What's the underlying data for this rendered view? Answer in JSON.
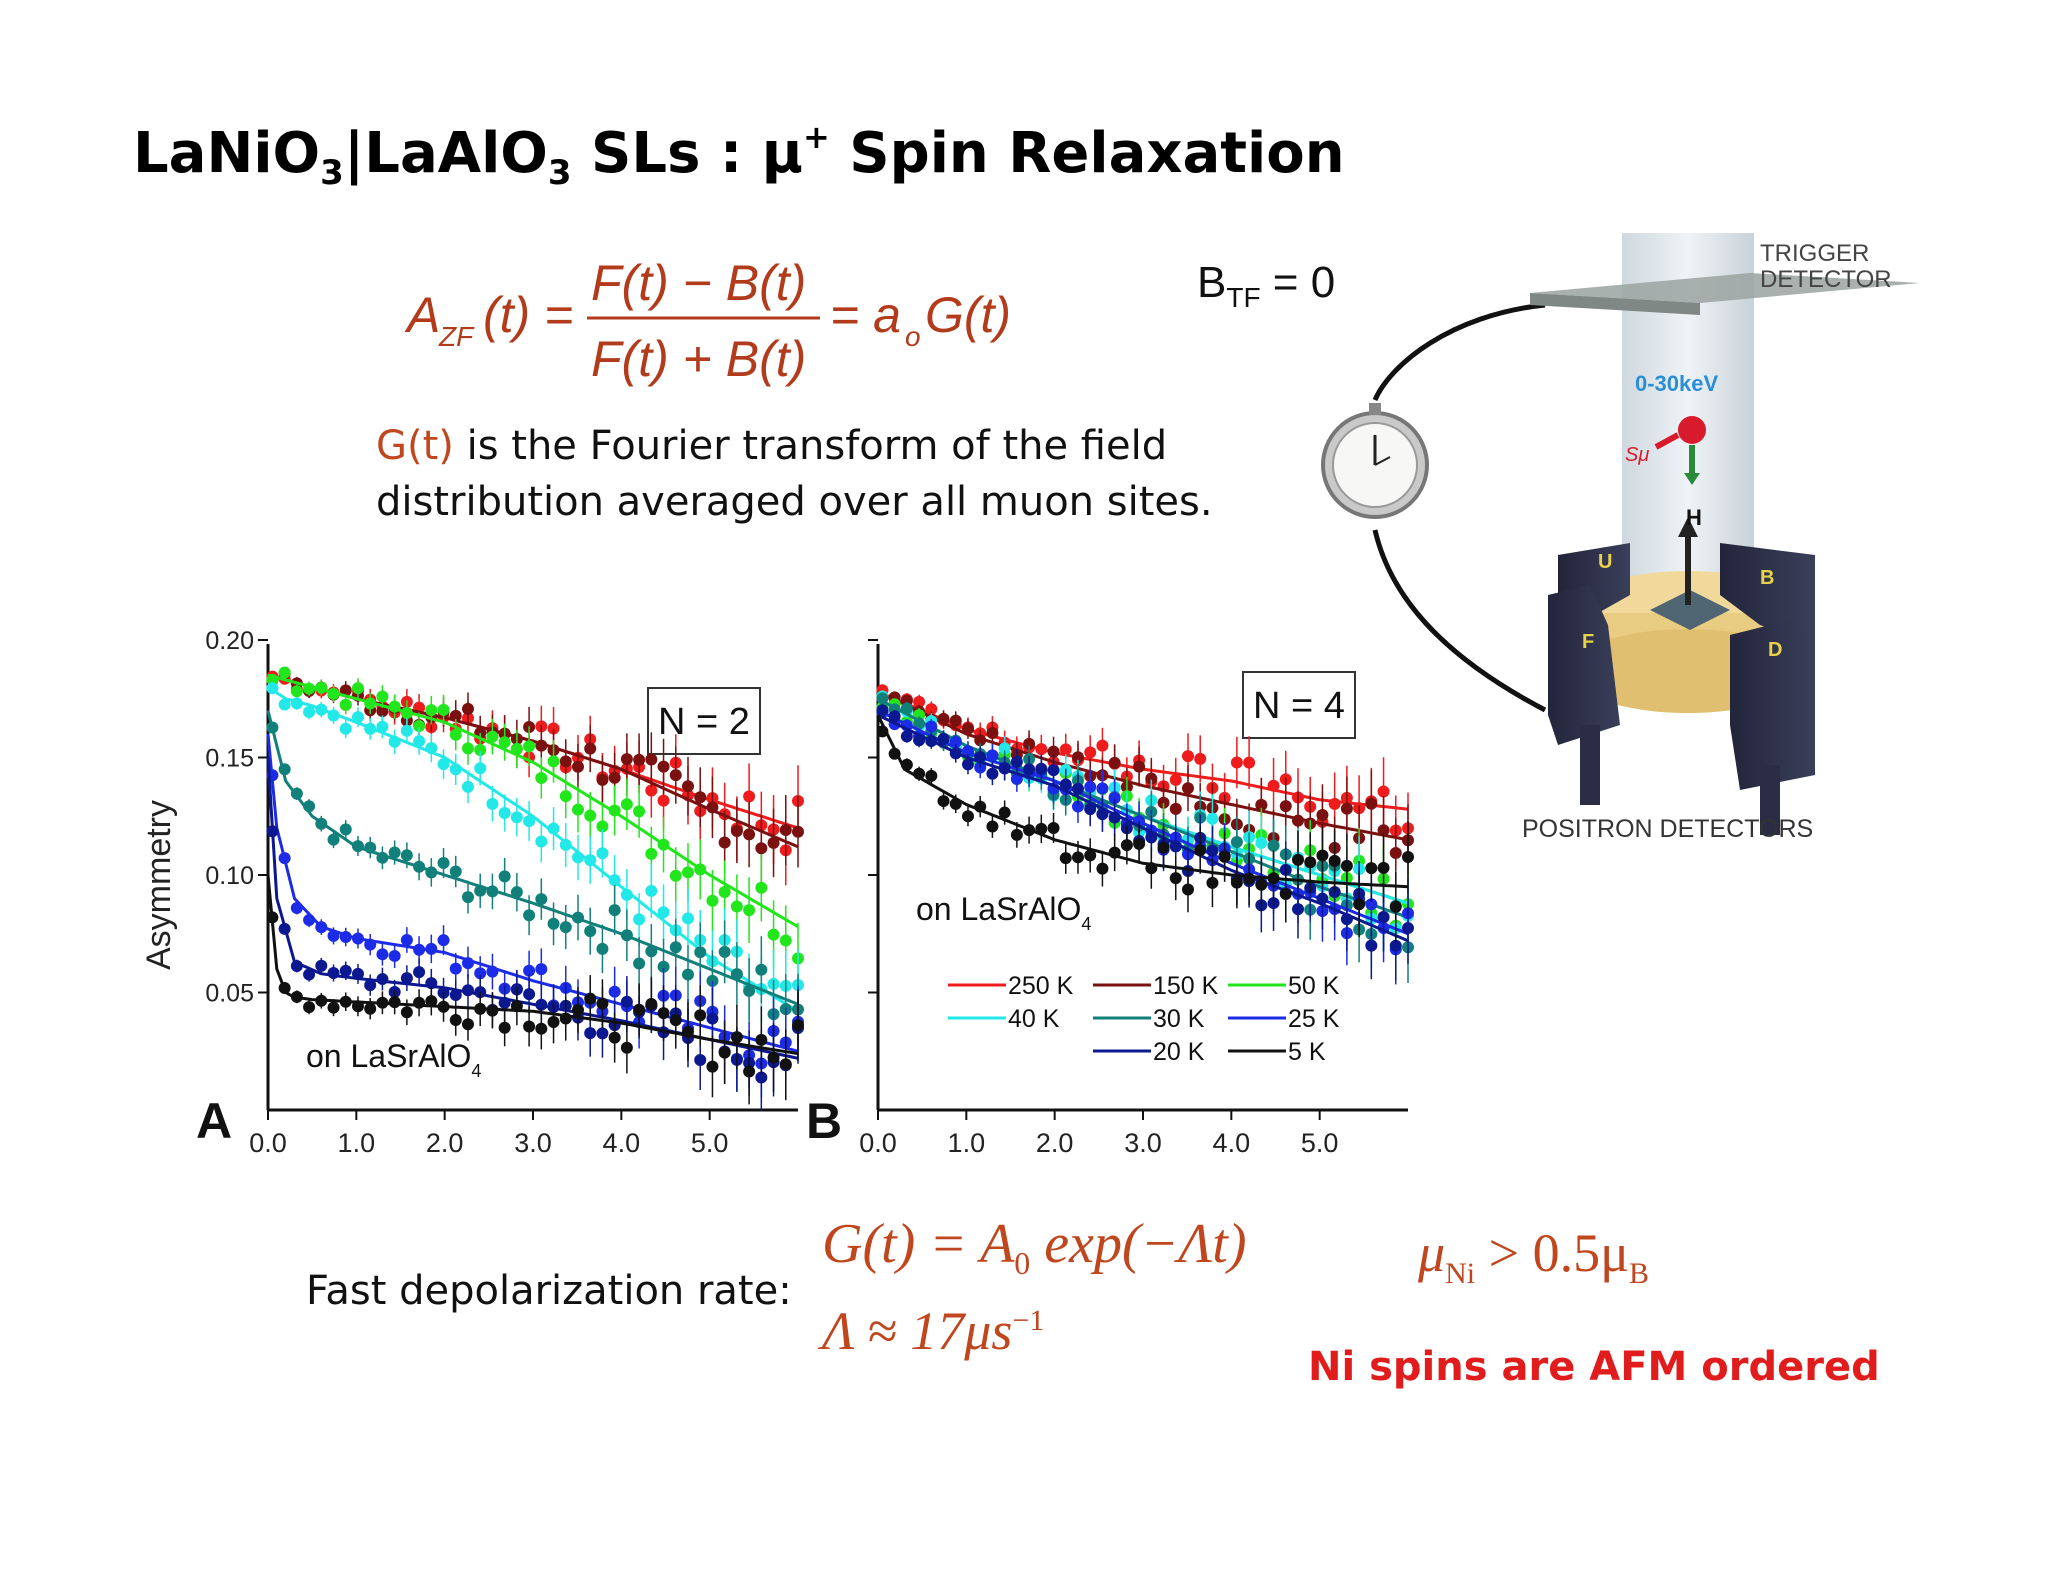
{
  "slide": {
    "title_parts": [
      "LaNiO",
      "3",
      "|LaAlO",
      "3",
      " SLs : μ",
      "+",
      " Spin Relaxation"
    ],
    "eq_a": "A",
    "eq_a_sub": "ZF",
    "eq_t": "(t) =",
    "eq_num": "F(t) − B(t)",
    "eq_den": "F(t) + B(t)",
    "eq_rhs": "= a",
    "eq_rhs_sub": "o",
    "eq_rhs2": "G(t)",
    "desc_hl": "G(t)",
    "desc_line1": " is the Fourier transform of the field",
    "desc_line2": "distribution averaged over all muon sites.",
    "btf_b": "B",
    "btf_sub": "TF",
    "btf_rest": " = 0",
    "fast_label": "Fast depolarization rate:",
    "eq_g": "G(t) = A",
    "eq_g_sub": "0",
    "eq_g_rest": " exp(−Λt)",
    "eq_lambda": "Λ ≈ 17μs",
    "eq_lambda_sup": "−1",
    "eq_mu": "μ",
    "eq_mu_sub": "Ni",
    "eq_mu_mid": " > 0.5μ",
    "eq_mu_sub2": "B",
    "afm": "Ni spins are AFM ordered"
  },
  "diagram": {
    "trigger": [
      "TRIGGER",
      "DETECTOR"
    ],
    "energy": "0-30keV",
    "spin": "Sμ",
    "field": "H",
    "letters": [
      "U",
      "B",
      "F",
      "D"
    ],
    "positron": "POSITRON DETECTORS"
  },
  "colors": {
    "250 K": "#ee1c1c",
    "150 K": "#7a1010",
    "50 K": "#22e61c",
    "40 K": "#22e8e8",
    "30 K": "#12807a",
    "25 K": "#1c2ce6",
    "20 K": "#0c1890",
    "5 K": "#111111"
  },
  "chart_data": [
    {
      "type": "scatter",
      "panel": "A",
      "box_label": "N = 2",
      "substrate": "on LaSrAlO",
      "substrate_sub": "4",
      "ylabel": "Asymmetry",
      "xlim": [
        0,
        6
      ],
      "ylim": [
        0,
        0.2
      ],
      "x_ticks": [
        "0.0",
        "1.0",
        "2.0",
        "3.0",
        "4.0",
        "5.0"
      ],
      "y_ticks": [
        "0.20",
        "0.15",
        "0.10",
        "0.05"
      ],
      "series": [
        {
          "name": "250 K",
          "x": [
            0,
            1,
            2,
            3,
            4,
            5,
            6
          ],
          "y": [
            0.185,
            0.175,
            0.167,
            0.157,
            0.145,
            0.132,
            0.12
          ]
        },
        {
          "name": "150 K",
          "x": [
            0,
            1,
            2,
            3,
            4,
            5,
            6
          ],
          "y": [
            0.185,
            0.175,
            0.167,
            0.157,
            0.145,
            0.128,
            0.112
          ]
        },
        {
          "name": "50 K",
          "x": [
            0,
            1,
            2,
            3,
            4,
            5,
            6
          ],
          "y": [
            0.185,
            0.175,
            0.165,
            0.148,
            0.125,
            0.1,
            0.078
          ]
        },
        {
          "name": "40 K",
          "x": [
            0,
            0.2,
            0.5,
            1,
            2,
            3,
            4,
            5,
            6
          ],
          "y": [
            0.18,
            0.175,
            0.172,
            0.165,
            0.15,
            0.125,
            0.095,
            0.065,
            0.042
          ]
        },
        {
          "name": "30 K",
          "x": [
            0,
            0.2,
            0.5,
            1,
            2,
            3,
            4,
            5,
            6
          ],
          "y": [
            0.17,
            0.14,
            0.125,
            0.112,
            0.1,
            0.088,
            0.075,
            0.06,
            0.045
          ]
        },
        {
          "name": "25 K",
          "x": [
            0,
            0.1,
            0.3,
            0.6,
            1,
            2,
            3,
            4,
            5,
            6
          ],
          "y": [
            0.16,
            0.12,
            0.09,
            0.078,
            0.073,
            0.067,
            0.055,
            0.045,
            0.035,
            0.025
          ]
        },
        {
          "name": "20 K",
          "x": [
            0,
            0.1,
            0.3,
            0.6,
            1,
            2,
            3,
            4,
            5,
            6
          ],
          "y": [
            0.15,
            0.09,
            0.063,
            0.058,
            0.056,
            0.052,
            0.045,
            0.038,
            0.03,
            0.022
          ]
        },
        {
          "name": "5 K",
          "x": [
            0,
            0.1,
            0.2,
            0.3,
            0.5,
            1,
            2,
            3,
            4,
            5,
            6
          ],
          "y": [
            0.1,
            0.06,
            0.05,
            0.048,
            0.047,
            0.046,
            0.044,
            0.042,
            0.037,
            0.03,
            0.024
          ]
        }
      ]
    },
    {
      "type": "scatter",
      "panel": "B",
      "box_label": "N = 4",
      "substrate": "on LaSrAlO",
      "substrate_sub": "4",
      "xlim": [
        0,
        6
      ],
      "ylim": [
        0,
        0.2
      ],
      "x_ticks": [
        "0.0",
        "1.0",
        "2.0",
        "3.0",
        "4.0",
        "5.0"
      ],
      "series": [
        {
          "name": "250 K",
          "x": [
            0,
            1,
            2,
            3,
            4,
            5,
            6
          ],
          "y": [
            0.178,
            0.162,
            0.152,
            0.145,
            0.14,
            0.132,
            0.128
          ]
        },
        {
          "name": "150 K",
          "x": [
            0,
            1,
            2,
            3,
            4,
            5,
            6
          ],
          "y": [
            0.178,
            0.16,
            0.148,
            0.138,
            0.13,
            0.122,
            0.115
          ]
        },
        {
          "name": "50 K",
          "x": [
            0,
            1,
            2,
            3,
            4,
            5,
            6
          ],
          "y": [
            0.175,
            0.155,
            0.14,
            0.125,
            0.112,
            0.1,
            0.088
          ]
        },
        {
          "name": "40 K",
          "x": [
            0,
            1,
            2,
            3,
            4,
            5,
            6
          ],
          "y": [
            0.175,
            0.155,
            0.14,
            0.125,
            0.112,
            0.1,
            0.088
          ]
        },
        {
          "name": "30 K",
          "x": [
            0,
            1,
            2,
            3,
            4,
            5,
            6
          ],
          "y": [
            0.175,
            0.155,
            0.14,
            0.125,
            0.11,
            0.095,
            0.082
          ]
        },
        {
          "name": "25 K",
          "x": [
            0,
            1,
            2,
            3,
            4,
            5,
            6
          ],
          "y": [
            0.17,
            0.152,
            0.14,
            0.122,
            0.105,
            0.09,
            0.075
          ]
        },
        {
          "name": "20 K",
          "x": [
            0,
            1,
            2,
            3,
            4,
            5,
            6
          ],
          "y": [
            0.168,
            0.15,
            0.138,
            0.12,
            0.102,
            0.088,
            0.072
          ]
        },
        {
          "name": "5 K",
          "x": [
            0,
            0.3,
            1,
            2,
            3,
            4,
            5,
            6
          ],
          "y": [
            0.168,
            0.145,
            0.13,
            0.115,
            0.105,
            0.1,
            0.097,
            0.095
          ]
        }
      ],
      "legend": [
        "250 K",
        "150 K",
        "50 K",
        "40 K",
        "30 K",
        "25 K",
        "20 K",
        "5 K"
      ]
    }
  ]
}
